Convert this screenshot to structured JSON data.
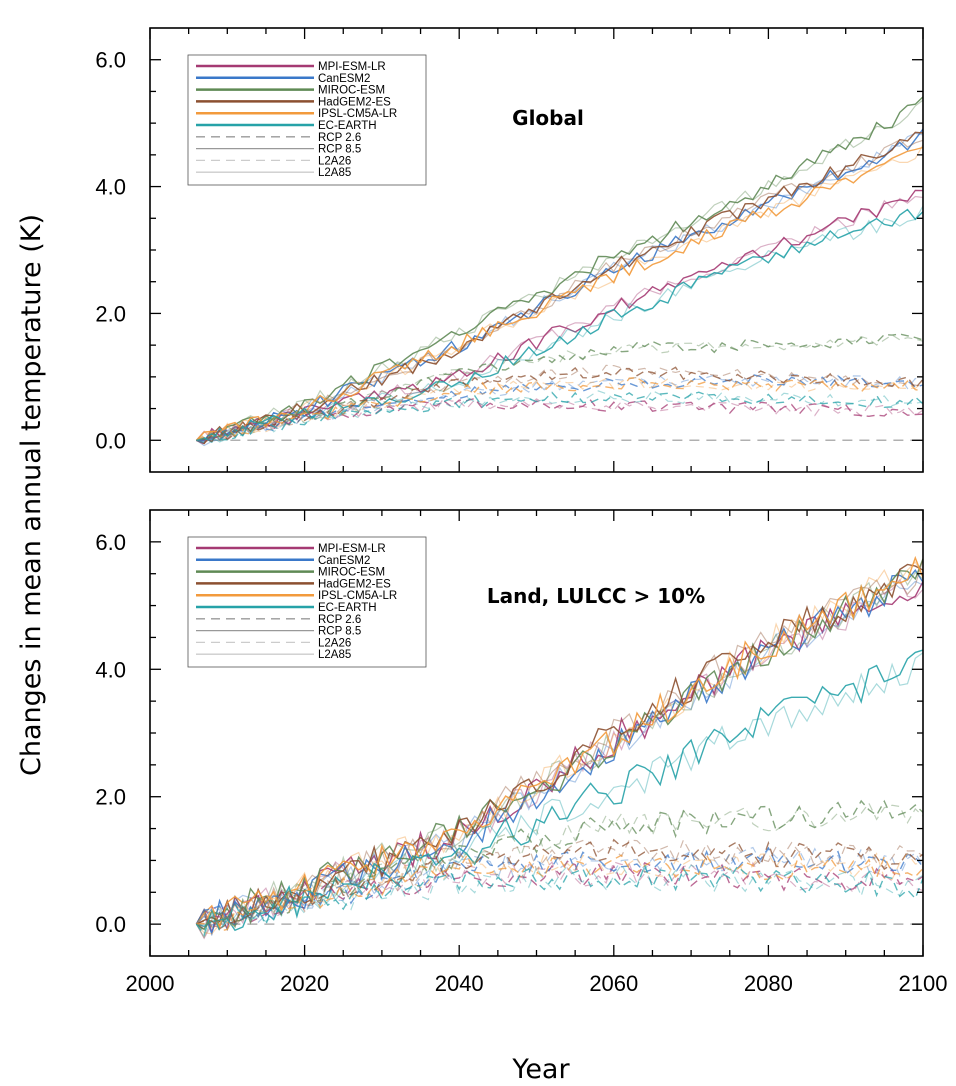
{
  "figure": {
    "ylabel": "Changes in mean annual temperature (K)",
    "xlabel": "Year"
  },
  "chart_data": [
    {
      "type": "line",
      "title": "Global",
      "xlim": [
        2000,
        2100
      ],
      "ylim": [
        -0.5,
        6.5
      ],
      "x_ticks": [
        2000,
        2020,
        2040,
        2060,
        2080,
        2100
      ],
      "y_ticks": [
        0.0,
        2.0,
        4.0,
        6.0
      ],
      "y_tick_labels": [
        "0.0",
        "2.0",
        "4.0",
        "6.0"
      ],
      "grid": false,
      "legend_position": "top-left",
      "legend": [
        {
          "label": "MPI-ESM-LR",
          "color": "#a53a73",
          "style": "solid"
        },
        {
          "label": "CanESM2",
          "color": "#3a78c9",
          "style": "solid"
        },
        {
          "label": "MIROC-ESM",
          "color": "#5f8a55",
          "style": "solid"
        },
        {
          "label": "HadGEM2-ES",
          "color": "#8c5030",
          "style": "solid"
        },
        {
          "label": "IPSL-CM5A-LR",
          "color": "#f29a3c",
          "style": "solid"
        },
        {
          "label": "EC-EARTH",
          "color": "#26a2a8",
          "style": "solid"
        },
        {
          "label": "RCP 2.6",
          "color": "#999999",
          "style": "dashed"
        },
        {
          "label": "RCP 8.5",
          "color": "#999999",
          "style": "solid"
        },
        {
          "label": "L2A26",
          "color": "#cccccc",
          "style": "dashed"
        },
        {
          "label": "L2A85",
          "color": "#cccccc",
          "style": "solid"
        }
      ],
      "x": [
        2006,
        2020,
        2040,
        2060,
        2080,
        2100
      ],
      "series": [
        {
          "name": "MPI-ESM-LR",
          "scenario": "RCP 8.5",
          "color": "#a53a73",
          "values": [
            0.0,
            0.45,
            1.0,
            2.1,
            3.0,
            3.9
          ]
        },
        {
          "name": "CanESM2",
          "scenario": "RCP 8.5",
          "color": "#3a78c9",
          "values": [
            0.0,
            0.5,
            1.5,
            2.7,
            3.7,
            4.8
          ]
        },
        {
          "name": "MIROC-ESM",
          "scenario": "RCP 8.5",
          "color": "#5f8a55",
          "values": [
            0.0,
            0.55,
            1.7,
            2.9,
            4.0,
            5.3
          ]
        },
        {
          "name": "HadGEM2-ES",
          "scenario": "RCP 8.5",
          "color": "#8c5030",
          "values": [
            0.0,
            0.5,
            1.45,
            2.75,
            3.8,
            4.8
          ]
        },
        {
          "name": "IPSL-CM5A-LR",
          "scenario": "RCP 8.5",
          "color": "#f29a3c",
          "values": [
            0.0,
            0.5,
            1.5,
            2.6,
            3.6,
            4.6
          ]
        },
        {
          "name": "EC-EARTH",
          "scenario": "RCP 8.5",
          "color": "#26a2a8",
          "values": [
            0.0,
            0.4,
            0.9,
            1.95,
            2.9,
            3.6
          ]
        },
        {
          "name": "MPI-ESM-LR",
          "scenario": "RCP 2.6",
          "color": "#a53a73",
          "values": [
            0.0,
            0.35,
            0.6,
            0.55,
            0.5,
            0.45
          ]
        },
        {
          "name": "CanESM2",
          "scenario": "RCP 2.6",
          "color": "#3a78c9",
          "values": [
            0.0,
            0.35,
            0.75,
            0.9,
            0.95,
            0.9
          ]
        },
        {
          "name": "MIROC-ESM",
          "scenario": "RCP 2.6",
          "color": "#5f8a55",
          "values": [
            0.0,
            0.4,
            1.05,
            1.45,
            1.5,
            1.6
          ]
        },
        {
          "name": "HadGEM2-ES",
          "scenario": "RCP 2.6",
          "color": "#8c5030",
          "values": [
            0.0,
            0.35,
            0.9,
            1.1,
            1.0,
            0.9
          ]
        },
        {
          "name": "IPSL-CM5A-LR",
          "scenario": "RCP 2.6",
          "color": "#f29a3c",
          "values": [
            0.0,
            0.35,
            0.8,
            0.9,
            0.85,
            0.85
          ]
        },
        {
          "name": "EC-EARTH",
          "scenario": "RCP 2.6",
          "color": "#26a2a8",
          "values": [
            0.0,
            0.3,
            0.6,
            0.7,
            0.65,
            0.6
          ]
        }
      ]
    },
    {
      "type": "line",
      "title": "Land, LULCC > 10%",
      "xlim": [
        2000,
        2100
      ],
      "ylim": [
        -0.5,
        6.5
      ],
      "x_ticks": [
        2000,
        2020,
        2040,
        2060,
        2080,
        2100
      ],
      "x_tick_labels": [
        "2000",
        "2020",
        "2040",
        "2060",
        "2080",
        "2100"
      ],
      "y_ticks": [
        0.0,
        2.0,
        4.0,
        6.0
      ],
      "y_tick_labels": [
        "0.0",
        "2.0",
        "4.0",
        "6.0"
      ],
      "grid": false,
      "legend_position": "top-left",
      "legend": [
        {
          "label": "MPI-ESM-LR",
          "color": "#a53a73",
          "style": "solid"
        },
        {
          "label": "CanESM2",
          "color": "#3a78c9",
          "style": "solid"
        },
        {
          "label": "MIROC-ESM",
          "color": "#5f8a55",
          "style": "solid"
        },
        {
          "label": "HadGEM2-ES",
          "color": "#8c5030",
          "style": "solid"
        },
        {
          "label": "IPSL-CM5A-LR",
          "color": "#f29a3c",
          "style": "solid"
        },
        {
          "label": "EC-EARTH",
          "color": "#26a2a8",
          "style": "solid"
        },
        {
          "label": "RCP 2.6",
          "color": "#999999",
          "style": "dashed"
        },
        {
          "label": "RCP 8.5",
          "color": "#999999",
          "style": "solid"
        },
        {
          "label": "L2A26",
          "color": "#cccccc",
          "style": "dashed"
        },
        {
          "label": "L2A85",
          "color": "#cccccc",
          "style": "solid"
        }
      ],
      "x": [
        2006,
        2020,
        2040,
        2060,
        2080,
        2100
      ],
      "series": [
        {
          "name": "MPI-ESM-LR",
          "scenario": "RCP 8.5",
          "color": "#a53a73",
          "values": [
            0.0,
            0.55,
            1.4,
            2.9,
            4.3,
            5.3
          ]
        },
        {
          "name": "CanESM2",
          "scenario": "RCP 8.5",
          "color": "#3a78c9",
          "values": [
            0.0,
            0.5,
            1.3,
            2.8,
            4.3,
            5.5
          ]
        },
        {
          "name": "MIROC-ESM",
          "scenario": "RCP 8.5",
          "color": "#5f8a55",
          "values": [
            0.0,
            0.6,
            1.45,
            2.8,
            4.3,
            5.6
          ]
        },
        {
          "name": "HadGEM2-ES",
          "scenario": "RCP 8.5",
          "color": "#8c5030",
          "values": [
            0.0,
            0.55,
            1.45,
            3.0,
            4.5,
            5.5
          ]
        },
        {
          "name": "IPSL-CM5A-LR",
          "scenario": "RCP 8.5",
          "color": "#f29a3c",
          "values": [
            0.0,
            0.55,
            1.45,
            2.9,
            4.4,
            5.6
          ]
        },
        {
          "name": "EC-EARTH",
          "scenario": "RCP 8.5",
          "color": "#26a2a8",
          "values": [
            0.0,
            0.4,
            1.1,
            2.1,
            3.2,
            4.1
          ]
        },
        {
          "name": "MPI-ESM-LR",
          "scenario": "RCP 2.6",
          "color": "#a53a73",
          "values": [
            0.0,
            0.4,
            0.75,
            0.8,
            0.75,
            0.65
          ]
        },
        {
          "name": "CanESM2",
          "scenario": "RCP 2.6",
          "color": "#3a78c9",
          "values": [
            0.0,
            0.4,
            0.85,
            1.0,
            1.0,
            0.95
          ]
        },
        {
          "name": "MIROC-ESM",
          "scenario": "RCP 2.6",
          "color": "#5f8a55",
          "values": [
            0.0,
            0.45,
            1.1,
            1.55,
            1.65,
            1.8
          ]
        },
        {
          "name": "HadGEM2-ES",
          "scenario": "RCP 2.6",
          "color": "#8c5030",
          "values": [
            0.0,
            0.4,
            0.95,
            1.15,
            1.1,
            1.05
          ]
        },
        {
          "name": "IPSL-CM5A-LR",
          "scenario": "RCP 2.6",
          "color": "#f29a3c",
          "values": [
            0.0,
            0.4,
            0.9,
            0.95,
            0.9,
            0.9
          ]
        },
        {
          "name": "EC-EARTH",
          "scenario": "RCP 2.6",
          "color": "#26a2a8",
          "values": [
            0.0,
            0.3,
            0.65,
            0.75,
            0.7,
            0.6
          ]
        }
      ]
    }
  ]
}
